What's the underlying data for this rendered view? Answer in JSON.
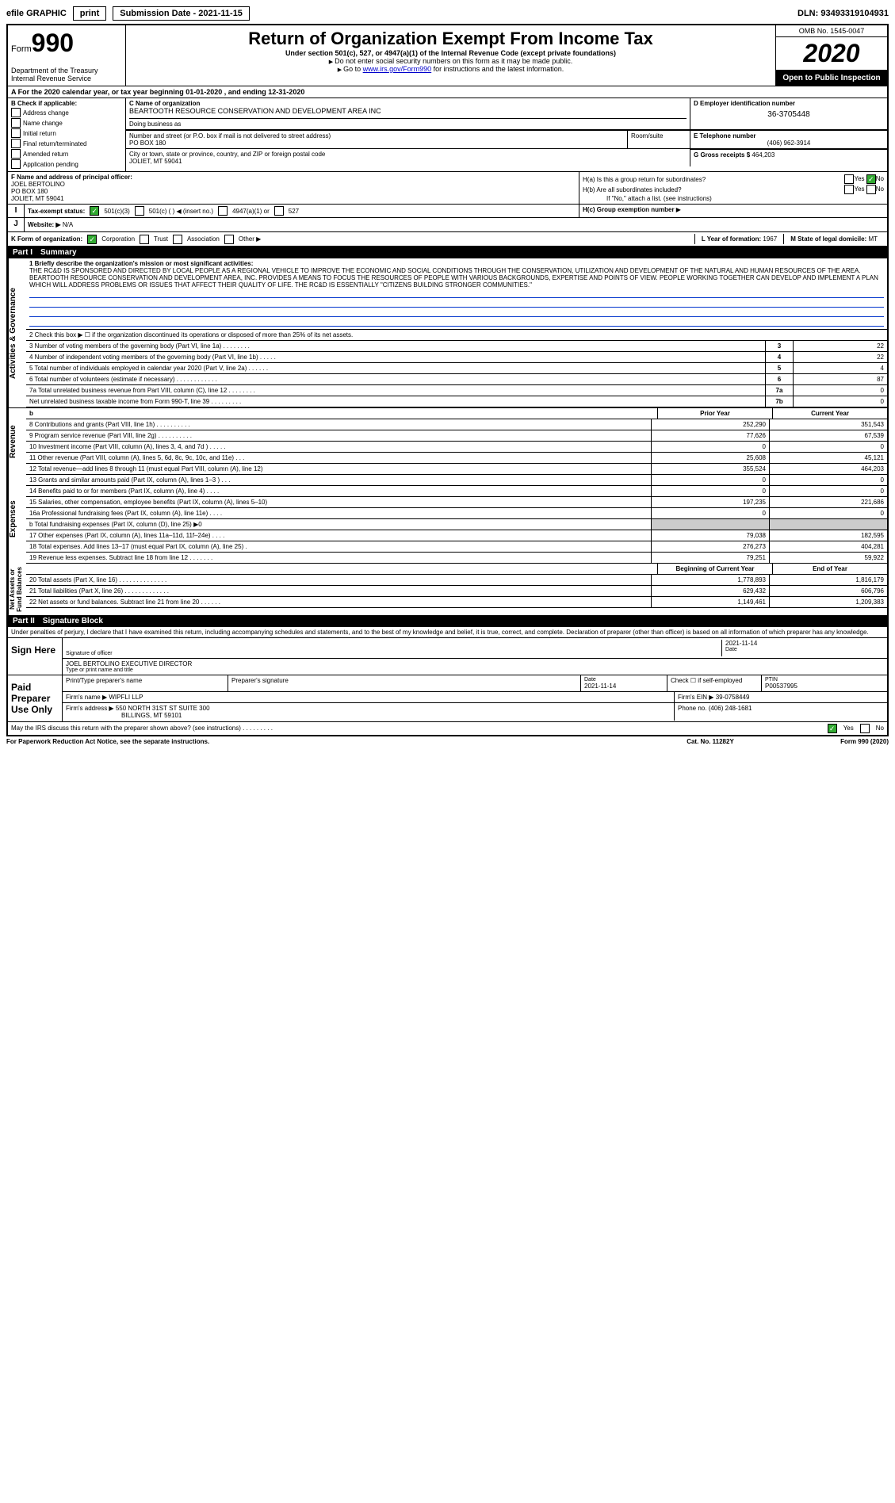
{
  "topbar": {
    "efile": "efile GRAPHIC",
    "print": "print",
    "subdate_label": "Submission Date - 2021-11-15",
    "dln": "DLN: 93493319104931"
  },
  "header": {
    "form_prefix": "Form",
    "form_no": "990",
    "dept": "Department of the Treasury\nInternal Revenue Service",
    "title": "Return of Organization Exempt From Income Tax",
    "sub1": "Under section 501(c), 527, or 4947(a)(1) of the Internal Revenue Code (except private foundations)",
    "sub2": "Do not enter social security numbers on this form as it may be made public.",
    "sub3_pre": "Go to ",
    "sub3_link": "www.irs.gov/Form990",
    "sub3_post": " for instructions and the latest information.",
    "omb": "OMB No. 1545-0047",
    "year": "2020",
    "open": "Open to Public Inspection"
  },
  "calyear": "For the 2020 calendar year, or tax year beginning 01-01-2020    , and ending 12-31-2020",
  "sectionB": {
    "label": "B Check if applicable:",
    "addr": "Address change",
    "name": "Name change",
    "init": "Initial return",
    "final": "Final return/terminated",
    "amend": "Amended return",
    "app": "Application pending"
  },
  "sectionC": {
    "label": "C Name of organization",
    "name": "BEARTOOTH RESOURCE CONSERVATION AND DEVELOPMENT AREA INC",
    "dba_label": "Doing business as",
    "addr_label": "Number and street (or P.O. box if mail is not delivered to street address)",
    "addr": "PO BOX 180",
    "room_label": "Room/suite",
    "city_label": "City or town, state or province, country, and ZIP or foreign postal code",
    "city": "JOLIET, MT  59041"
  },
  "sectionD": {
    "label": "D Employer identification number",
    "val": "36-3705448"
  },
  "sectionE": {
    "label": "E Telephone number",
    "val": "(406) 962-3914"
  },
  "sectionG": {
    "label": "G Gross receipts $",
    "val": "464,203"
  },
  "sectionF": {
    "label": "F  Name and address of principal officer:",
    "name": "JOEL BERTOLINO",
    "addr1": "PO BOX 180",
    "addr2": "JOLIET, MT  59041"
  },
  "sectionH": {
    "a_label": "H(a)  Is this a group return for subordinates?",
    "yes": "Yes",
    "no": "No",
    "b_label": "H(b)  Are all subordinates included?",
    "note": "If \"No,\" attach a list. (see instructions)",
    "c_label": "H(c)  Group exemption number"
  },
  "taxexempt": {
    "label": "Tax-exempt status:",
    "c3": "501(c)(3)",
    "c_ins": "501(c) (  )  ◀ (insert no.)",
    "a1": "4947(a)(1) or",
    "c527": "527"
  },
  "rowJ": {
    "j": "J",
    "website_label": "Website: ▶",
    "website_val": "N/A"
  },
  "rowK": {
    "label": "K Form of organization:",
    "corp": "Corporation",
    "trust": "Trust",
    "assoc": "Association",
    "other": "Other ▶",
    "L_label": "L Year of formation:",
    "L_val": "1967",
    "M_label": "M State of legal domicile:",
    "M_val": "MT"
  },
  "part1": {
    "header": "Part I",
    "title": "Summary",
    "vert_ag": "Activities & Governance",
    "line1_label": "1  Briefly describe the organization's mission or most significant activities:",
    "mission": "THE RC&D IS SPONSORED AND DIRECTED BY LOCAL PEOPLE AS A REGIONAL VEHICLE TO IMPROVE THE ECONOMIC AND SOCIAL CONDITIONS THROUGH THE CONSERVATION, UTILIZATION AND DEVELOPMENT OF THE NATURAL AND HUMAN RESOURCES OF THE AREA. BEARTOOTH RESOURCE CONSERVATION AND DEVELOPMENT AREA, INC. PROVIDES A MEANS TO FOCUS THE RESOURCES OF PEOPLE WITH VARIOUS BACKGROUNDS, EXPERTISE AND POINTS OF VIEW. PEOPLE WORKING TOGETHER CAN DEVELOP AND IMPLEMENT A PLAN WHICH WILL ADDRESS PROBLEMS OR ISSUES THAT AFFECT THEIR QUALITY OF LIFE. THE RC&D IS ESSENTIALLY \"CITIZENS BUILDING STRONGER COMMUNITIES.\"",
    "line2": "2  Check this box ▶ ☐  if the organization discontinued its operations or disposed of more than 25% of its net assets.",
    "rows_num": [
      {
        "n": "3",
        "label": "3  Number of voting members of the governing body (Part VI, line 1a)   .    .    .    .    .    .    .    .",
        "val": "22"
      },
      {
        "n": "4",
        "label": "4  Number of independent voting members of the governing body (Part VI, line 1b)  .    .    .    .    .",
        "val": "22"
      },
      {
        "n": "5",
        "label": "5  Total number of individuals employed in calendar year 2020 (Part V, line 2a)  .    .    .    .    .    .",
        "val": "4"
      },
      {
        "n": "6",
        "label": "6  Total number of volunteers (estimate if necessary)  .    .    .    .    .    .    .    .    .    .    .    .",
        "val": "87"
      },
      {
        "n": "7a",
        "label": "7a  Total unrelated business revenue from Part VIII, column (C), line 12  .    .    .    .    .    .    .    .",
        "val": "0"
      },
      {
        "n": "7b",
        "label": "    Net unrelated business taxable income from Form 990-T, line 39  .    .    .    .    .    .    .    .    .",
        "val": "0"
      }
    ],
    "prior_hdr": "Prior Year",
    "curr_hdr": "Current Year",
    "vert_rev": "Revenue",
    "rev_rows": [
      {
        "label": "8  Contributions and grants (Part VIII, line 1h)  .    .    .    .    .    .    .    .    .    .",
        "prior": "252,290",
        "curr": "351,543"
      },
      {
        "label": "9  Program service revenue (Part VIII, line 2g)   .    .    .    .    .    .    .    .    .    .",
        "prior": "77,626",
        "curr": "67,539"
      },
      {
        "label": "10  Investment income (Part VIII, column (A), lines 3, 4, and 7d )   .    .    .    .    .",
        "prior": "0",
        "curr": "0"
      },
      {
        "label": "11  Other revenue (Part VIII, column (A), lines 5, 6d, 8c, 9c, 10c, and 11e)  .    .    .",
        "prior": "25,608",
        "curr": "45,121"
      },
      {
        "label": "12  Total revenue—add lines 8 through 11 (must equal Part VIII, column (A), line 12)",
        "prior": "355,524",
        "curr": "464,203"
      }
    ],
    "vert_exp": "Expenses",
    "exp_rows": [
      {
        "label": "13  Grants and similar amounts paid (Part IX, column (A), lines 1–3 )  .    .    .",
        "prior": "0",
        "curr": "0"
      },
      {
        "label": "14  Benefits paid to or for members (Part IX, column (A), line 4)  .    .    .    .",
        "prior": "0",
        "curr": "0"
      },
      {
        "label": "15  Salaries, other compensation, employee benefits (Part IX, column (A), lines 5–10)",
        "prior": "197,235",
        "curr": "221,686"
      },
      {
        "label": "16a  Professional fundraising fees (Part IX, column (A), line 11e)  .    .    .    .",
        "prior": "0",
        "curr": "0"
      }
    ],
    "line16b": "b  Total fundraising expenses (Part IX, column (D), line 25) ▶0",
    "exp_rows2": [
      {
        "label": "17  Other expenses (Part IX, column (A), lines 11a–11d, 11f–24e)  .    .    .    .",
        "prior": "79,038",
        "curr": "182,595"
      },
      {
        "label": "18  Total expenses. Add lines 13–17 (must equal Part IX, column (A), line 25)  .",
        "prior": "276,273",
        "curr": "404,281"
      },
      {
        "label": "19  Revenue less expenses. Subtract line 18 from line 12  .    .    .    .    .    .    .",
        "prior": "79,251",
        "curr": "59,922"
      }
    ],
    "vert_na": "Net Assets or\nFund Balances",
    "na_hdr_begin": "Beginning of Current Year",
    "na_hdr_end": "End of Year",
    "na_rows": [
      {
        "label": "20  Total assets (Part X, line 16)  .    .    .    .    .    .    .    .    .    .    .    .    .    .",
        "prior": "1,778,893",
        "curr": "1,816,179"
      },
      {
        "label": "21  Total liabilities (Part X, line 26)  .    .    .    .    .    .    .    .    .    .    .    .    .",
        "prior": "629,432",
        "curr": "606,796"
      },
      {
        "label": "22  Net assets or fund balances. Subtract line 21 from line 20  .    .    .    .    .    .",
        "prior": "1,149,461",
        "curr": "1,209,383"
      }
    ]
  },
  "part2": {
    "header": "Part II",
    "title": "Signature Block",
    "penalties": "Under penalties of perjury, I declare that I have examined this return, including accompanying schedules and statements, and to the best of my knowledge and belief, it is true, correct, and complete. Declaration of preparer (other than officer) is based on all information of which preparer has any knowledge.",
    "sign_here": "Sign Here",
    "sig_officer": "Signature of officer",
    "sig_date": "2021-11-14",
    "sig_date_label": "Date",
    "officer": "JOEL BERTOLINO  EXECUTIVE DIRECTOR",
    "officer_label": "Type or print name and title",
    "paid": "Paid Preparer Use Only",
    "prep_name_label": "Print/Type preparer's name",
    "prep_sig_label": "Preparer's signature",
    "prep_date_label": "Date",
    "prep_date": "2021-11-14",
    "prep_check_label": "Check ☐ if self-employed",
    "ptin_label": "PTIN",
    "ptin": "P00537995",
    "firm_name_label": "Firm's name   ▶",
    "firm_name": "WIPFLI LLP",
    "firm_ein_label": "Firm's EIN ▶",
    "firm_ein": "39-0758449",
    "firm_addr_label": "Firm's address ▶",
    "firm_addr": "550 NORTH 31ST ST SUITE 300",
    "firm_city": "BILLINGS, MT  59101",
    "phone_label": "Phone no.",
    "phone": "(406) 248-1681",
    "discuss": "May the IRS discuss this return with the preparer shown above? (see instructions)  .    .    .    .    .    .    .    .    .",
    "yes": "Yes",
    "no": "No"
  },
  "footer": {
    "left": "For Paperwork Reduction Act Notice, see the separate instructions.",
    "mid": "Cat. No. 11282Y",
    "right": "Form 990 (2020)"
  }
}
